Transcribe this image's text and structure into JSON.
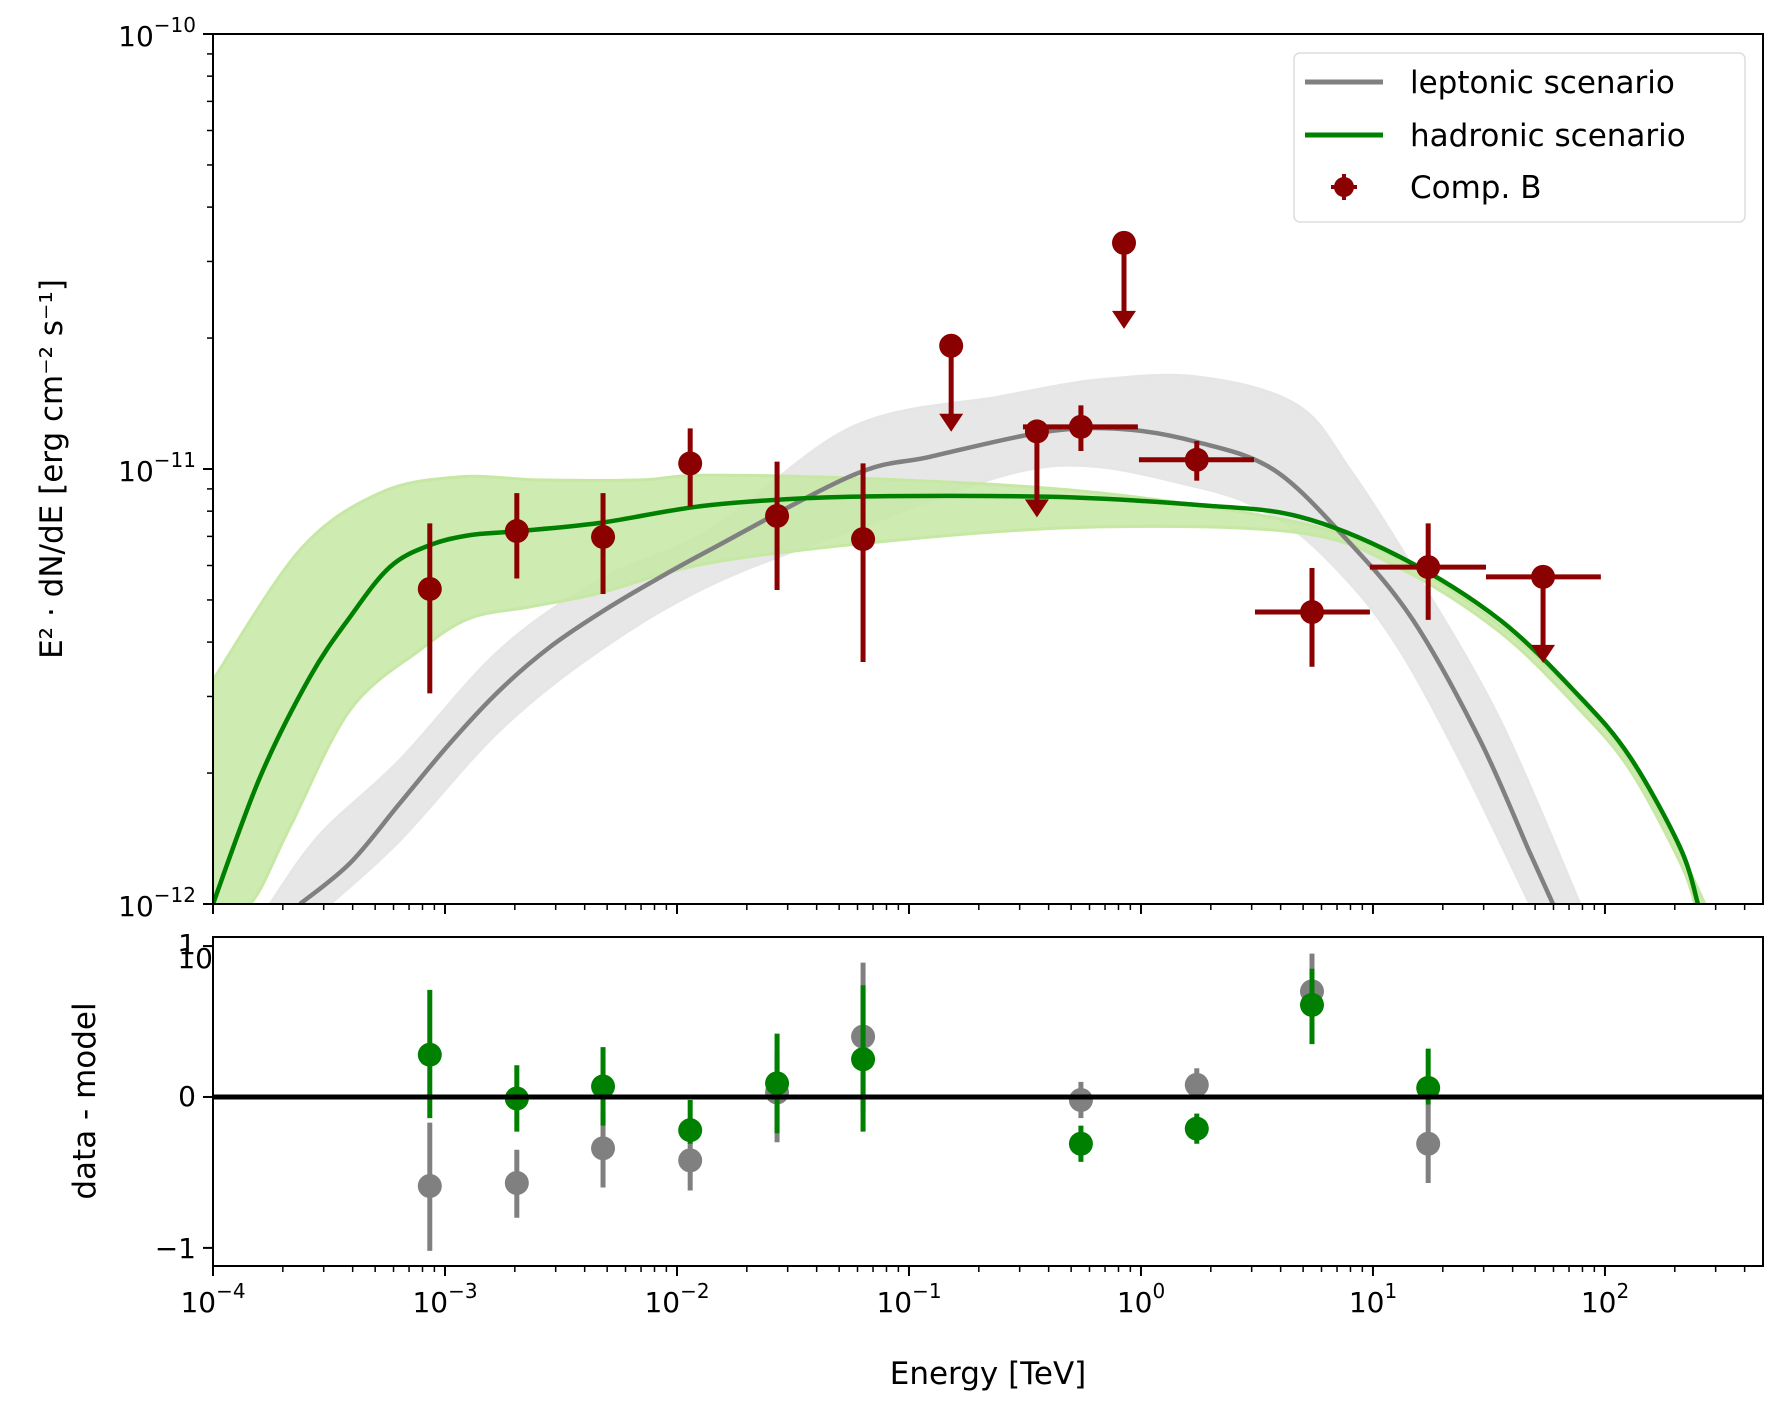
{
  "chart_data": [
    {
      "panel": "spectrum",
      "type": "scatter",
      "xscale": "log",
      "yscale": "log",
      "xlabel": "Energy [TeV]",
      "ylabel": "E² · dN/dE [erg cm⁻² s⁻¹]",
      "xlim": [
        0.0001,
        480
      ],
      "ylim": [
        1e-12,
        1e-10
      ],
      "xticks": [
        {
          "value": 0.0001,
          "base": "10",
          "exp": "−4"
        },
        {
          "value": 0.001,
          "base": "10",
          "exp": "−3"
        },
        {
          "value": 0.01,
          "base": "10",
          "exp": "−2"
        },
        {
          "value": 0.1,
          "base": "10",
          "exp": "−1"
        },
        {
          "value": 1,
          "base": "10",
          "exp": "0"
        },
        {
          "value": 10,
          "base": "10",
          "exp": "1"
        },
        {
          "value": 100,
          "base": "10",
          "exp": "2"
        }
      ],
      "yticks": [
        {
          "value": 1e-10,
          "base": "10",
          "exp": "−10"
        },
        {
          "value": 1e-11,
          "base": "10",
          "exp": "−11"
        },
        {
          "value": 1e-12,
          "base": "10",
          "exp": "−12"
        }
      ],
      "grid": false,
      "legend_position": "top-right",
      "legend": [
        {
          "label": "leptonic scenario",
          "kind": "line",
          "color": "#808080"
        },
        {
          "label": "hadronic scenario",
          "kind": "line",
          "color": "#008000"
        },
        {
          "label": "Comp. B",
          "kind": "errorbar-marker",
          "color": "#8b0000"
        }
      ],
      "series": [
        {
          "name": "leptonic scenario",
          "kind": "model-line",
          "color": "#808080",
          "band_color": "#e6e6e6",
          "points_log10_E_F": [
            [
              -3.625,
              -12.0
            ],
            [
              -3.409,
              -11.906
            ],
            [
              -3.194,
              -11.768
            ],
            [
              -2.978,
              -11.63
            ],
            [
              -2.763,
              -11.508
            ],
            [
              -2.547,
              -11.409
            ],
            [
              -2.332,
              -11.331
            ],
            [
              -2.116,
              -11.262
            ],
            [
              -1.858,
              -11.186
            ],
            [
              -1.241,
              -11.014
            ],
            [
              -0.909,
              -10.972
            ],
            [
              -0.418,
              -10.915
            ],
            [
              -0.086,
              -10.908
            ],
            [
              0.241,
              -10.938
            ],
            [
              0.573,
              -11.002
            ],
            [
              0.888,
              -11.163
            ],
            [
              1.172,
              -11.347
            ],
            [
              1.461,
              -11.623
            ],
            [
              1.677,
              -11.883
            ],
            [
              1.776,
              -12.0
            ]
          ],
          "band_upper_log10_E_F": [
            [
              -3.754,
              -12.0
            ],
            [
              -3.539,
              -11.841
            ],
            [
              -3.194,
              -11.669
            ],
            [
              -2.763,
              -11.416
            ],
            [
              -2.332,
              -11.255
            ],
            [
              -1.858,
              -11.14
            ],
            [
              -1.241,
              -10.903
            ],
            [
              -0.608,
              -10.834
            ],
            [
              -0.177,
              -10.795
            ],
            [
              0.254,
              -10.789
            ],
            [
              0.672,
              -10.853
            ],
            [
              0.901,
              -11.002
            ],
            [
              1.203,
              -11.255
            ],
            [
              1.547,
              -11.577
            ],
            [
              1.892,
              -12.0
            ]
          ],
          "band_lower_log10_E_F": [
            [
              -3.496,
              -12.0
            ],
            [
              -3.194,
              -11.853
            ],
            [
              -2.763,
              -11.6
            ],
            [
              -2.332,
              -11.416
            ],
            [
              -1.858,
              -11.267
            ],
            [
              -1.241,
              -11.14
            ],
            [
              -0.418,
              -10.995
            ],
            [
              0.241,
              -11.041
            ],
            [
              0.599,
              -11.117
            ],
            [
              0.888,
              -11.255
            ],
            [
              1.116,
              -11.416
            ],
            [
              1.375,
              -11.669
            ],
            [
              1.677,
              -12.0
            ]
          ]
        },
        {
          "name": "hadronic scenario",
          "kind": "model-line",
          "color": "#008000",
          "band_color": "#c6e8a4",
          "points_log10_E_F": [
            [
              -4.0,
              -12.0
            ],
            [
              -3.797,
              -11.708
            ],
            [
              -3.582,
              -11.478
            ],
            [
              -3.409,
              -11.34
            ],
            [
              -3.237,
              -11.225
            ],
            [
              -3.065,
              -11.175
            ],
            [
              -2.892,
              -11.152
            ],
            [
              -2.69,
              -11.143
            ],
            [
              -2.332,
              -11.124
            ],
            [
              -1.858,
              -11.083
            ],
            [
              -1.254,
              -11.064
            ],
            [
              -0.392,
              -11.064
            ],
            [
              0.254,
              -11.083
            ],
            [
              0.685,
              -11.11
            ],
            [
              1.116,
              -11.202
            ],
            [
              1.547,
              -11.347
            ],
            [
              1.892,
              -11.524
            ],
            [
              2.108,
              -11.662
            ],
            [
              2.323,
              -11.869
            ],
            [
              2.401,
              -12.0
            ]
          ],
          "band_upper_log10_E_F": [
            [
              -4.0,
              -11.485
            ],
            [
              -3.625,
              -11.186
            ],
            [
              -3.28,
              -11.055
            ],
            [
              -2.935,
              -11.018
            ],
            [
              -2.591,
              -11.025
            ],
            [
              -2.159,
              -11.025
            ],
            [
              -1.858,
              -11.014
            ],
            [
              -1.039,
              -11.025
            ],
            [
              -0.177,
              -11.055
            ],
            [
              0.685,
              -11.124
            ],
            [
              1.116,
              -11.209
            ],
            [
              1.547,
              -11.359
            ],
            [
              1.892,
              -11.531
            ],
            [
              2.108,
              -11.674
            ],
            [
              2.323,
              -11.88
            ],
            [
              2.431,
              -12.0
            ]
          ],
          "band_lower_log10_E_F": [
            [
              -4.0,
              -12.0
            ],
            [
              -3.841,
              -12.0
            ],
            [
              -3.668,
              -11.823
            ],
            [
              -3.409,
              -11.554
            ],
            [
              -3.108,
              -11.416
            ],
            [
              -2.892,
              -11.343
            ],
            [
              -2.634,
              -11.317
            ],
            [
              -2.332,
              -11.285
            ],
            [
              -1.858,
              -11.216
            ],
            [
              -1.039,
              -11.163
            ],
            [
              -0.177,
              -11.133
            ],
            [
              0.685,
              -11.147
            ],
            [
              1.116,
              -11.228
            ],
            [
              1.547,
              -11.375
            ],
            [
              1.892,
              -11.554
            ],
            [
              2.108,
              -11.692
            ],
            [
              2.323,
              -11.903
            ],
            [
              2.388,
              -12.0
            ]
          ]
        },
        {
          "name": "Comp. B",
          "kind": "flux-points",
          "color": "#8b0000",
          "points": [
            {
              "E": 0.00086,
              "F": 5.3e-12,
              "F_lo": 3.05e-12,
              "F_hi": 7.5e-12,
              "ul": false
            },
            {
              "E": 0.00204,
              "F": 7.2e-12,
              "F_lo": 5.6e-12,
              "F_hi": 8.8e-12,
              "ul": false
            },
            {
              "E": 0.0048,
              "F": 6.98e-12,
              "F_lo": 5.16e-12,
              "F_hi": 8.8e-12,
              "ul": false
            },
            {
              "E": 0.0114,
              "F": 1.03e-11,
              "F_lo": 8.2e-12,
              "F_hi": 1.24e-11,
              "ul": false
            },
            {
              "E": 0.027,
              "F": 7.8e-12,
              "F_lo": 5.27e-12,
              "F_hi": 1.04e-11,
              "ul": false
            },
            {
              "E": 0.0634,
              "F": 6.9e-12,
              "F_lo": 3.6e-12,
              "F_hi": 1.03e-11,
              "ul": false
            },
            {
              "E": 0.152,
              "F": 1.92e-11,
              "ul": true
            },
            {
              "E": 0.356,
              "F": 1.22e-11,
              "ul": true
            },
            {
              "E": 0.551,
              "F": 1.25e-11,
              "F_lo": 1.1e-11,
              "F_hi": 1.4e-11,
              "E_lo": 0.31,
              "E_hi": 0.97,
              "ul": false
            },
            {
              "E": 0.845,
              "F": 3.31e-11,
              "ul": true
            },
            {
              "E": 1.74,
              "F": 1.05e-11,
              "F_lo": 9.4e-12,
              "F_hi": 1.16e-11,
              "E_lo": 0.98,
              "E_hi": 3.07,
              "ul": false
            },
            {
              "E": 5.46,
              "F": 4.69e-12,
              "F_lo": 3.51e-12,
              "F_hi": 5.92e-12,
              "E_lo": 3.1,
              "E_hi": 9.7,
              "ul": false
            },
            {
              "E": 17.3,
              "F": 5.95e-12,
              "F_lo": 4.5e-12,
              "F_hi": 7.5e-12,
              "E_lo": 9.7,
              "E_hi": 30.7,
              "ul": false
            },
            {
              "E": 54.1,
              "F": 5.65e-12,
              "E_lo": 30.7,
              "E_hi": 96,
              "ul": true
            }
          ]
        }
      ]
    },
    {
      "panel": "residuals",
      "type": "scatter",
      "xscale": "log",
      "xlabel": "Energy [TeV]",
      "ylabel": "data - model",
      "xlim": [
        0.0001,
        480
      ],
      "ylim": [
        -1.12,
        1.06
      ],
      "yticks": [
        {
          "value": 1,
          "label": "1"
        },
        {
          "value": 0,
          "label": "0"
        },
        {
          "value": -1,
          "label": "−1"
        }
      ],
      "stray_label": "10",
      "zero_line": 0,
      "series": [
        {
          "name": "leptonic scenario",
          "color": "#808080",
          "points": [
            {
              "E": 0.00086,
              "v": -0.59,
              "lo": -1.02,
              "hi": -0.17
            },
            {
              "E": 0.00204,
              "v": -0.57,
              "lo": -0.8,
              "hi": -0.35
            },
            {
              "E": 0.0048,
              "v": -0.34,
              "lo": -0.6,
              "hi": -0.1
            },
            {
              "E": 0.0114,
              "v": -0.42,
              "lo": -0.62,
              "hi": -0.25
            },
            {
              "E": 0.027,
              "v": 0.03,
              "lo": -0.3,
              "hi": 0.3
            },
            {
              "E": 0.0634,
              "v": 0.4,
              "lo": -0.1,
              "hi": 0.89
            },
            {
              "E": 0.551,
              "v": -0.02,
              "lo": -0.14,
              "hi": 0.1
            },
            {
              "E": 1.74,
              "v": 0.08,
              "lo": -0.01,
              "hi": 0.19
            },
            {
              "E": 5.46,
              "v": 0.7,
              "lo": 0.43,
              "hi": 0.95
            },
            {
              "E": 17.3,
              "v": -0.31,
              "lo": -0.57,
              "hi": -0.05
            }
          ]
        },
        {
          "name": "hadronic scenario",
          "color": "#008000",
          "points": [
            {
              "E": 0.00086,
              "v": 0.28,
              "lo": -0.14,
              "hi": 0.71
            },
            {
              "E": 0.00204,
              "v": -0.01,
              "lo": -0.23,
              "hi": 0.21
            },
            {
              "E": 0.0048,
              "v": 0.07,
              "lo": -0.19,
              "hi": 0.33
            },
            {
              "E": 0.0114,
              "v": -0.22,
              "lo": -0.31,
              "hi": -0.02
            },
            {
              "E": 0.027,
              "v": 0.09,
              "lo": -0.24,
              "hi": 0.42
            },
            {
              "E": 0.0634,
              "v": 0.25,
              "lo": -0.23,
              "hi": 0.74
            },
            {
              "E": 0.551,
              "v": -0.31,
              "lo": -0.43,
              "hi": -0.19
            },
            {
              "E": 1.74,
              "v": -0.21,
              "lo": -0.31,
              "hi": -0.11
            },
            {
              "E": 5.46,
              "v": 0.61,
              "lo": 0.35,
              "hi": 0.85
            },
            {
              "E": 17.3,
              "v": 0.06,
              "lo": -0.05,
              "hi": 0.32
            }
          ]
        }
      ]
    }
  ]
}
